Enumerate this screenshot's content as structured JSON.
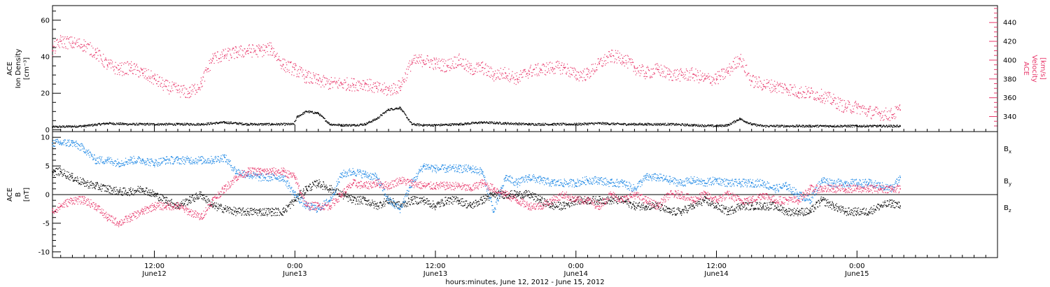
{
  "xlabel": "hours:minutes, June 12, 2012 - June 15, 2012",
  "x_ticks": [
    {
      "hour": 12,
      "time": "12:00",
      "day": "June12"
    },
    {
      "hour": 24,
      "time": "0:00",
      "day": "June13"
    },
    {
      "hour": 36,
      "time": "12:00",
      "day": "June13"
    },
    {
      "hour": 48,
      "time": "0:00",
      "day": "June14"
    },
    {
      "hour": 60,
      "time": "12:00",
      "day": "June14"
    },
    {
      "hour": 72,
      "time": "0:00",
      "day": "June15"
    }
  ],
  "colors": {
    "black": "#000000",
    "blue": "#1e88e5",
    "pink": "#e8386b"
  },
  "chart_data": [
    {
      "type": "scatter",
      "panel": "top",
      "xunit": "hours since start of June 12, 2012",
      "xlim": [
        3.3,
        84
      ],
      "ylabel_left": [
        "ACE",
        "Ion Density",
        "[cm⁻³]"
      ],
      "ylabel_right": [
        "ACE",
        "Velocity",
        "[km/s]"
      ],
      "ylim_left": [
        -1,
        68
      ],
      "yticks_left": [
        0,
        20,
        40,
        60
      ],
      "ylim_right": [
        324,
        458
      ],
      "yticks_right": [
        340,
        360,
        380,
        400,
        420,
        440
      ],
      "series": [
        {
          "key": "density",
          "axis": "left",
          "color": "#000000",
          "x": [
            3.3,
            6,
            8,
            10,
            12,
            14,
            16,
            18,
            20,
            22,
            23.9,
            24.2,
            25,
            26,
            27,
            28,
            29,
            30,
            31,
            32,
            33,
            34,
            35,
            36,
            38,
            40,
            42,
            44,
            46,
            48,
            50,
            52,
            54,
            56,
            58,
            60,
            61,
            62,
            63,
            64,
            66,
            68,
            70,
            72,
            74,
            75.7
          ],
          "y": [
            1.5,
            2,
            3.5,
            3,
            3,
            3,
            3,
            4,
            3,
            3,
            3,
            7,
            10,
            9,
            3,
            2.5,
            2.5,
            3,
            6,
            11,
            12,
            3,
            2.5,
            2.5,
            3,
            4,
            3.5,
            3,
            3,
            3,
            3.5,
            3,
            3,
            3,
            2.5,
            2,
            2.5,
            6,
            3,
            2,
            2,
            2,
            2,
            2,
            2,
            2
          ]
        },
        {
          "key": "velocity",
          "axis": "right",
          "color": "#e8386b",
          "x": [
            3.3,
            4,
            5,
            6,
            7,
            8,
            9,
            10,
            11,
            12,
            13,
            14,
            15,
            16,
            17,
            18,
            19,
            20,
            21,
            22,
            23,
            24,
            25,
            26,
            27,
            28,
            29,
            30,
            31,
            32,
            33,
            34,
            35,
            36,
            37,
            38,
            39,
            40,
            41,
            42,
            43,
            44,
            45,
            46,
            47,
            48,
            49,
            50,
            51,
            52,
            53,
            54,
            55,
            56,
            57,
            58,
            59,
            60,
            61,
            62,
            63,
            64,
            65,
            66,
            67,
            68,
            69,
            70,
            71,
            72,
            73,
            74,
            75,
            75.7
          ],
          "y": [
            410,
            420,
            418,
            416,
            408,
            395,
            390,
            392,
            386,
            380,
            372,
            368,
            365,
            375,
            402,
            405,
            408,
            410,
            410,
            412,
            395,
            390,
            382,
            378,
            375,
            375,
            374,
            375,
            370,
            368,
            372,
            398,
            400,
            396,
            394,
            400,
            390,
            392,
            384,
            386,
            380,
            388,
            390,
            392,
            392,
            384,
            385,
            396,
            404,
            402,
            392,
            386,
            390,
            385,
            384,
            385,
            380,
            380,
            388,
            402,
            378,
            374,
            372,
            370,
            366,
            365,
            362,
            357,
            350,
            350,
            345,
            343,
            342,
            347
          ]
        }
      ]
    },
    {
      "type": "scatter",
      "panel": "bottom",
      "xunit": "hours since start of June 12, 2012",
      "xlim": [
        3.3,
        84
      ],
      "ylabel": [
        "ACE",
        "B",
        "[nT]"
      ],
      "ylim": [
        -11,
        11
      ],
      "yticks": [
        -10,
        -5,
        0,
        5,
        10
      ],
      "legend": [
        {
          "label": "B",
          "sub": "x",
          "color": "#000000"
        },
        {
          "label": "B",
          "sub": "y",
          "color": "#1e88e5"
        },
        {
          "label": "B",
          "sub": "z",
          "color": "#e8386b"
        }
      ],
      "series": [
        {
          "key": "bx",
          "color": "#000000",
          "x": [
            3.3,
            4,
            5,
            6,
            7,
            8,
            9,
            10,
            11,
            12,
            13,
            14,
            15,
            16,
            17,
            18,
            19,
            20,
            21,
            22,
            23,
            24,
            25,
            26,
            27,
            28,
            29,
            30,
            31,
            32,
            33,
            34,
            35,
            36,
            37,
            38,
            39,
            40,
            41,
            42,
            43,
            44,
            45,
            46,
            47,
            48,
            49,
            50,
            51,
            52,
            53,
            54,
            55,
            56,
            57,
            58,
            59,
            60,
            61,
            62,
            63,
            64,
            65,
            66,
            67,
            68,
            69,
            70,
            71,
            72,
            73,
            74,
            75,
            75.7
          ],
          "y": [
            4,
            4,
            3,
            2,
            1.5,
            1,
            0.5,
            0.5,
            1,
            0,
            -1,
            -2,
            -1,
            0,
            -2,
            -2.5,
            -3,
            -3,
            -3,
            -3,
            -3,
            -1,
            1,
            2,
            1,
            0,
            -1,
            -1,
            -2,
            -1,
            -2,
            -1,
            -1,
            -2,
            -1,
            -1,
            -2,
            -1,
            0,
            0,
            0,
            0,
            -1,
            -2,
            -2,
            -1,
            -1,
            -1,
            -1,
            -1,
            -2,
            -2,
            -2,
            -3,
            -3,
            -2,
            -1,
            -2,
            -3,
            -2,
            -2,
            -2,
            -2,
            -3,
            -3,
            -3,
            -1,
            -2,
            -3,
            -3,
            -3,
            -2,
            -1.5,
            -2
          ]
        },
        {
          "key": "by",
          "color": "#1e88e5",
          "x": [
            3.3,
            4,
            5,
            6,
            7,
            8,
            9,
            10,
            11,
            12,
            13,
            14,
            15,
            16,
            17,
            18,
            19,
            20,
            21,
            22,
            23,
            24,
            25,
            26,
            27,
            28,
            29,
            30,
            31,
            32,
            33,
            34,
            35,
            36,
            37,
            38,
            39,
            40,
            41,
            42,
            43,
            44,
            45,
            46,
            47,
            48,
            49,
            50,
            51,
            52,
            53,
            54,
            55,
            56,
            57,
            58,
            59,
            60,
            61,
            62,
            63,
            64,
            65,
            66,
            67,
            68,
            69,
            70,
            71,
            72,
            73,
            74,
            75,
            75.7
          ],
          "y": [
            9,
            9,
            9,
            8,
            6,
            6,
            5.5,
            6,
            6,
            5.5,
            6,
            6,
            6,
            6,
            6,
            6.5,
            4,
            3.5,
            3,
            3,
            3,
            0,
            -2,
            -2.5,
            -1,
            3.5,
            4,
            3.5,
            3,
            -1,
            -2.5,
            2,
            5,
            4.5,
            4.5,
            4.5,
            4.5,
            4,
            -3,
            3,
            2,
            3,
            2.5,
            2,
            2,
            2,
            2.5,
            2.5,
            2,
            2,
            1,
            3,
            3,
            2.5,
            2,
            2.5,
            2,
            2.5,
            2,
            2,
            2,
            2,
            1,
            1.5,
            0,
            -1,
            2.5,
            2,
            2,
            2,
            2,
            1.5,
            1,
            3
          ]
        },
        {
          "key": "bz",
          "color": "#e8386b",
          "x": [
            3.3,
            4,
            5,
            6,
            7,
            8,
            9,
            10,
            11,
            12,
            13,
            14,
            15,
            16,
            17,
            18,
            19,
            20,
            21,
            22,
            23,
            24,
            25,
            26,
            27,
            28,
            29,
            30,
            31,
            32,
            33,
            34,
            35,
            36,
            37,
            38,
            39,
            40,
            41,
            42,
            43,
            44,
            45,
            46,
            47,
            48,
            49,
            50,
            51,
            52,
            53,
            54,
            55,
            56,
            57,
            58,
            59,
            60,
            61,
            62,
            63,
            64,
            65,
            66,
            67,
            68,
            69,
            70,
            71,
            72,
            73,
            74,
            75,
            75.7
          ],
          "y": [
            -3,
            -2,
            -1,
            -1,
            -2,
            -4,
            -5,
            -4,
            -3,
            -2,
            -2,
            -2,
            -3,
            -4,
            -1,
            1,
            3,
            4,
            4,
            4,
            4,
            3,
            -2,
            -2,
            -2,
            0,
            2,
            1.5,
            2,
            1.5,
            2.5,
            2,
            1.5,
            1.5,
            1.5,
            1.5,
            1,
            2,
            1,
            0,
            -1,
            -2,
            -2,
            -1,
            0,
            -1,
            -1,
            -2,
            0,
            -1,
            0,
            -1,
            -2,
            0,
            0,
            -1,
            0,
            -1,
            0,
            -1,
            -1,
            0,
            -1,
            -1,
            -1,
            1,
            1,
            1,
            1,
            1,
            1,
            1,
            1,
            1
          ]
        }
      ]
    }
  ]
}
